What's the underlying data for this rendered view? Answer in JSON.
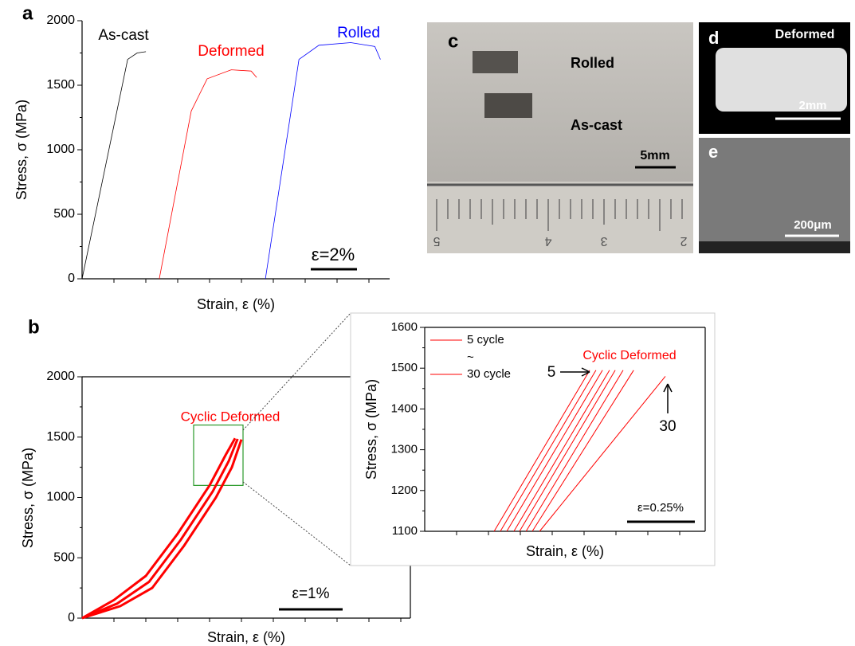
{
  "chart_data": [
    {
      "type": "line",
      "panel_label": "a",
      "xlabel": "Strain, ε (%)",
      "ylabel": "Stress, σ (MPa)",
      "xlim": [
        0,
        13.3
      ],
      "ylim": [
        0,
        2000
      ],
      "yticks": [
        0,
        500,
        1000,
        1500,
        2000
      ],
      "series": [
        {
          "name": "As-cast",
          "color": "#000000",
          "x": [
            0,
            1.97,
            2.38,
            2.76
          ],
          "values": [
            0,
            1700,
            1750,
            1760
          ]
        },
        {
          "name": "Deformed",
          "color": "#ff0000",
          "x": [
            3.34,
            4.72,
            5.41,
            6.45,
            7.31,
            7.55
          ],
          "values": [
            0,
            1300,
            1550,
            1620,
            1610,
            1560
          ]
        },
        {
          "name": "Rolled",
          "color": "#0000ff",
          "x": [
            7.93,
            9.38,
            10.24,
            11.62,
            12.66,
            12.9
          ],
          "values": [
            0,
            1700,
            1810,
            1830,
            1800,
            1700
          ]
        }
      ],
      "annotations": [
        "ε=2%"
      ]
    },
    {
      "type": "line",
      "panel_label": "b",
      "xlabel": "Strain, ε (%)",
      "ylabel": "Stress, σ (MPa)",
      "xlim": [
        0,
        5.15
      ],
      "ylim": [
        0,
        2000
      ],
      "yticks": [
        0,
        500,
        1000,
        1500,
        2000
      ],
      "series": [
        {
          "color": "#ff0000",
          "x": [
            0,
            0.5,
            1.0,
            1.5,
            2.0,
            2.25,
            2.4
          ],
          "values": [
            0,
            150,
            350,
            700,
            1100,
            1350,
            1490
          ]
        },
        {
          "color": "#ff0000",
          "x": [
            0,
            0.6,
            1.1,
            1.6,
            2.1,
            2.35,
            2.5
          ],
          "values": [
            0,
            100,
            250,
            600,
            1000,
            1250,
            1480
          ]
        },
        {
          "color": "#ff0000",
          "x": [
            0,
            0.55,
            1.05,
            1.55,
            2.05,
            2.3,
            2.44
          ],
          "values": [
            0,
            120,
            300,
            650,
            1050,
            1300,
            1485
          ]
        }
      ],
      "annotations": [
        "Cyclic Deformed",
        "ε=1%"
      ]
    },
    {
      "type": "line",
      "xlabel": "Strain, ε (%)",
      "ylabel": "Stress, σ (MPa)",
      "xlim": [
        0,
        1.035
      ],
      "ylim": [
        1100,
        1600
      ],
      "yticks": [
        1100,
        1200,
        1300,
        1400,
        1500,
        1600
      ],
      "legend_separator": "~",
      "series": [
        {
          "name": "5 cycle",
          "color": "#ff0000",
          "x": [
            0.256,
            0.609
          ],
          "values": [
            1100,
            1495
          ]
        },
        {
          "color": "#ff0000",
          "x": [
            0.279,
            0.632
          ],
          "values": [
            1100,
            1495
          ]
        },
        {
          "color": "#ff0000",
          "x": [
            0.303,
            0.656
          ],
          "values": [
            1100,
            1495
          ]
        },
        {
          "color": "#ff0000",
          "x": [
            0.329,
            0.682
          ],
          "values": [
            1100,
            1495
          ]
        },
        {
          "color": "#ff0000",
          "x": [
            0.35,
            0.703
          ],
          "values": [
            1100,
            1495
          ]
        },
        {
          "color": "#ff0000",
          "x": [
            0.374,
            0.732
          ],
          "values": [
            1100,
            1495
          ]
        },
        {
          "color": "#ff0000",
          "x": [
            0.397,
            0.771
          ],
          "values": [
            1100,
            1495
          ]
        },
        {
          "name": "30 cycle",
          "color": "#ff0000",
          "x": [
            0.424,
            0.888
          ],
          "values": [
            1100,
            1480
          ]
        }
      ],
      "annotations": [
        "Cyclic Deformed",
        "5",
        "30",
        "ε=0.25%"
      ]
    }
  ],
  "photos": {
    "c": {
      "label": "c",
      "texts": [
        "Rolled",
        "As-cast",
        "5mm"
      ],
      "ruler": [
        "5",
        "4",
        "3",
        "2"
      ]
    },
    "d": {
      "label": "d",
      "texts": [
        "Deformed",
        "2mm"
      ]
    },
    "e": {
      "label": "e",
      "texts": [
        "200μm"
      ]
    }
  }
}
